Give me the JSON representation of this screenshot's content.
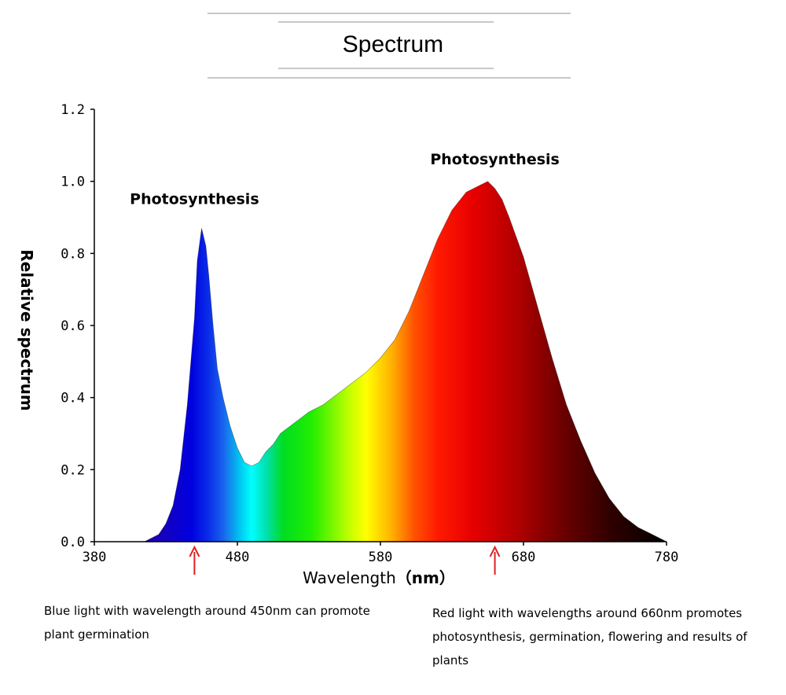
{
  "title": "Spectrum",
  "chart_data": {
    "type": "area",
    "xlabel": "Wavelength",
    "xlabel_unit": "（nm）",
    "ylabel": "Relative spectrum",
    "xlim": [
      380,
      780
    ],
    "ylim": [
      0,
      1.2
    ],
    "x_ticks": [
      380,
      480,
      580,
      680,
      780
    ],
    "y_ticks": [
      "0.0",
      "0.2",
      "0.4",
      "0.6",
      "0.8",
      "1.0",
      "1.2"
    ],
    "grid": false,
    "series": [
      {
        "x": [
          380,
          400,
          410,
          415,
          420,
          425,
          430,
          435,
          440,
          445,
          450,
          452,
          455,
          458,
          460,
          463,
          466,
          470,
          475,
          480,
          485,
          490,
          495,
          500,
          505,
          510,
          520,
          530,
          540,
          550,
          560,
          570,
          580,
          590,
          600,
          610,
          620,
          630,
          640,
          650,
          655,
          660,
          665,
          670,
          680,
          690,
          700,
          710,
          720,
          730,
          740,
          750,
          760,
          770,
          775,
          780
        ],
        "y": [
          0.0,
          0.0,
          0.0,
          0.0,
          0.01,
          0.02,
          0.05,
          0.1,
          0.2,
          0.38,
          0.62,
          0.78,
          0.87,
          0.82,
          0.74,
          0.6,
          0.48,
          0.4,
          0.32,
          0.26,
          0.22,
          0.21,
          0.22,
          0.25,
          0.27,
          0.3,
          0.33,
          0.36,
          0.38,
          0.41,
          0.44,
          0.47,
          0.51,
          0.56,
          0.64,
          0.74,
          0.84,
          0.92,
          0.97,
          0.99,
          1.0,
          0.98,
          0.95,
          0.9,
          0.79,
          0.65,
          0.51,
          0.38,
          0.28,
          0.19,
          0.12,
          0.07,
          0.04,
          0.02,
          0.01,
          0.0
        ]
      }
    ],
    "annotations": [
      {
        "text": "Photosynthesis",
        "x": 450,
        "y": 0.95
      },
      {
        "text": "Photosynthesis",
        "x": 660,
        "y": 1.06
      }
    ],
    "markers": [
      {
        "x": 450,
        "color": "#e02020"
      },
      {
        "x": 660,
        "color": "#e02020"
      }
    ],
    "colors": {
      "arrow": "#e02020",
      "axis": "#000000"
    }
  },
  "captions": {
    "left": "Blue light with wavelength around 450nm can promote plant germination",
    "right": "Red light with wavelengths around 660nm promotes photosynthesis, germination, flowering and results of plants"
  }
}
